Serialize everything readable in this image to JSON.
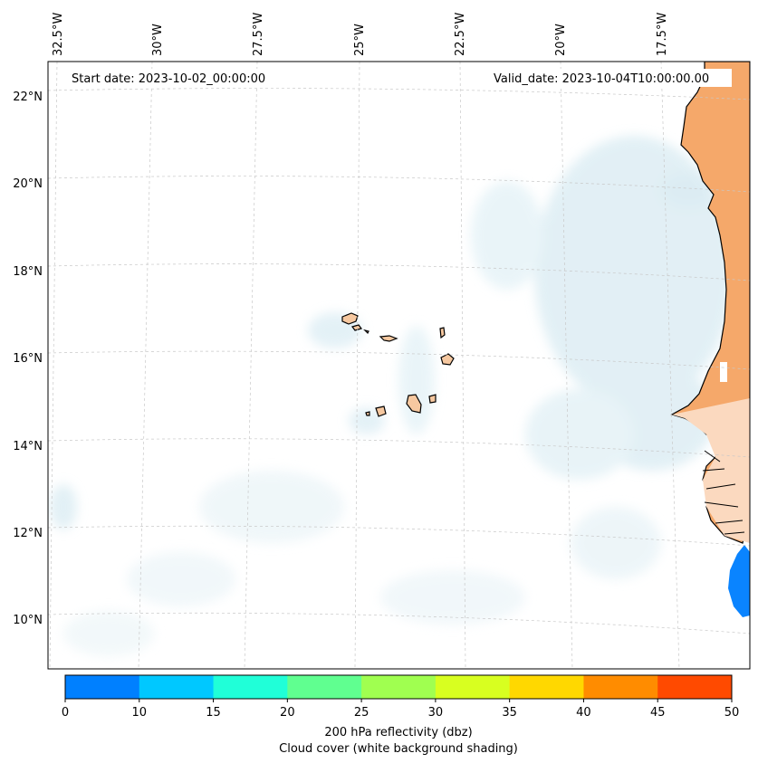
{
  "map": {
    "start_date": "Start date: 2023-10-02_00:00:00",
    "valid_date": "Valid_date: 2023-10-04T10:00:00.00",
    "lon_labels": [
      "32.5°W",
      "30°W",
      "27.5°W",
      "25°W",
      "22.5°W",
      "20°W",
      "17.5°W"
    ],
    "lat_labels": [
      "22°N",
      "20°N",
      "18°N",
      "16°N",
      "14°N",
      "12°N",
      "10°N"
    ]
  },
  "colorbar": {
    "ticks": [
      "0",
      "10",
      "15",
      "20",
      "25",
      "30",
      "35",
      "40",
      "45",
      "50"
    ],
    "colors": [
      "#0080ff",
      "#00c8ff",
      "#20ffd8",
      "#60ff90",
      "#a0ff50",
      "#d8ff20",
      "#ffd800",
      "#ff8c00",
      "#ff4a00"
    ],
    "title": "200 hPa reflectivity (dbz)",
    "subtitle": "Cloud cover (white background shading)"
  },
  "colors": {
    "land": "#f5a86a",
    "island": "#f6c8a0",
    "cloud": "#cfe6ef",
    "echo": "#0a84ff",
    "grid": "#c8c8c8"
  }
}
